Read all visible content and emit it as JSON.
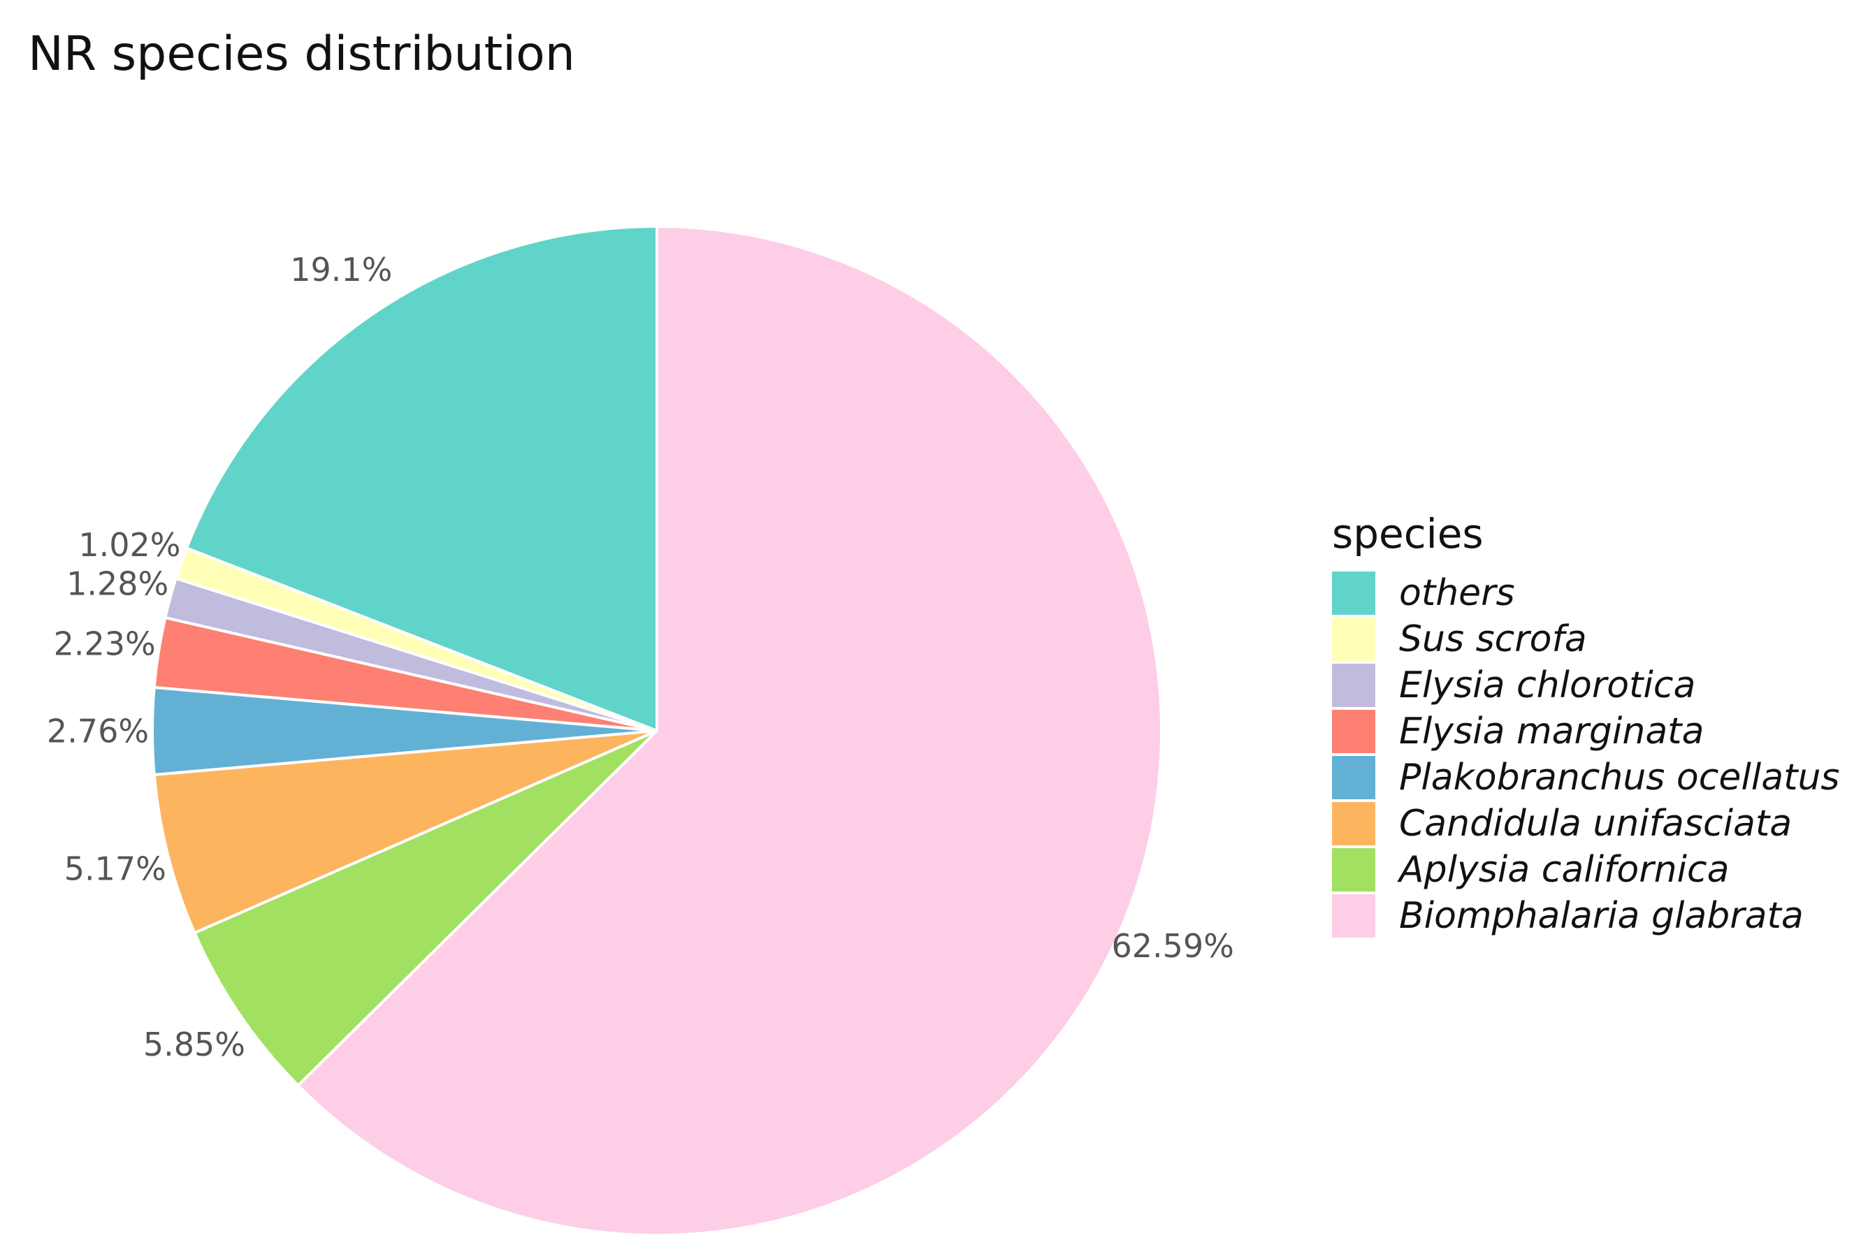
{
  "chart_data": {
    "type": "pie",
    "title": "NR species distribution",
    "legend_title": "species",
    "legend_position": "right",
    "slices": [
      {
        "name": "others",
        "value": 19.1,
        "label": "19.1%",
        "color": "#61D4C9"
      },
      {
        "name": "Sus scrofa",
        "value": 1.02,
        "label": "1.02%",
        "color": "#FFFFB8"
      },
      {
        "name": "Elysia chlorotica",
        "value": 1.28,
        "label": "1.28%",
        "color": "#C0BCDE"
      },
      {
        "name": "Elysia marginata",
        "value": 2.23,
        "label": "2.23%",
        "color": "#FD8072"
      },
      {
        "name": "Plakobranchus ocellatus",
        "value": 2.76,
        "label": "2.76%",
        "color": "#62B1D5"
      },
      {
        "name": "Candidula unifasciata",
        "value": 5.17,
        "label": "5.17%",
        "color": "#FDB45F"
      },
      {
        "name": "Aplysia californica",
        "value": 5.85,
        "label": "5.85%",
        "color": "#A2E062"
      },
      {
        "name": "Biomphalaria glabrata",
        "value": 62.59,
        "label": "62.59%",
        "color": "#FECDE6"
      }
    ]
  }
}
